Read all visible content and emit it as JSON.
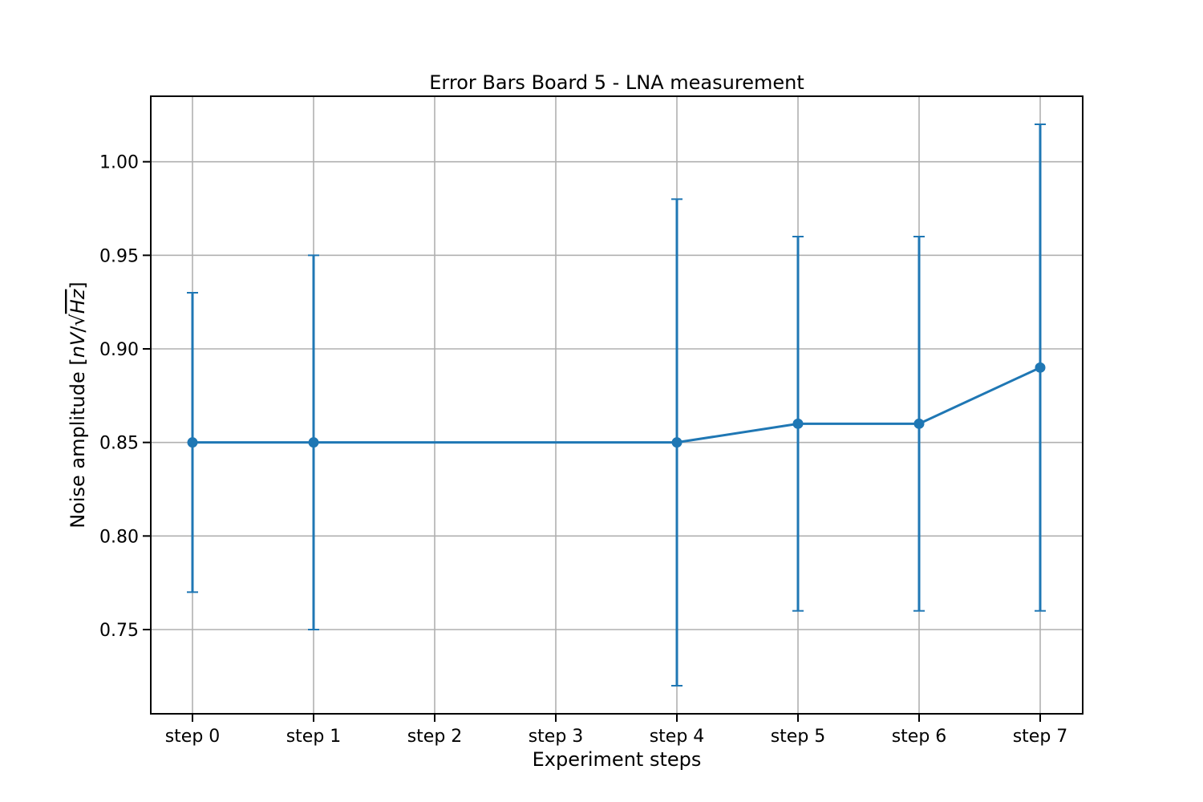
{
  "chart_data": {
    "type": "line",
    "title": "Error Bars Board 5 - LNA measurement",
    "xlabel": "Experiment steps",
    "ylabel_prefix": "Noise amplitude [",
    "ylabel_unit_italic_1": "nV",
    "ylabel_slash": "/",
    "ylabel_radical": "√",
    "ylabel_unit_italic_2": "Hz",
    "ylabel_suffix": "]",
    "categories": [
      "step 0",
      "step 1",
      "step 2",
      "step 3",
      "step 4",
      "step 5",
      "step 6",
      "step 7"
    ],
    "series": [
      {
        "points": [
          {
            "x": "step 0",
            "y": 0.85,
            "ylow": 0.77,
            "yhigh": 0.93
          },
          {
            "x": "step 1",
            "y": 0.85,
            "ylow": 0.75,
            "yhigh": 0.95
          },
          {
            "x": "step 4",
            "y": 0.85,
            "ylow": 0.72,
            "yhigh": 0.98
          },
          {
            "x": "step 5",
            "y": 0.86,
            "ylow": 0.76,
            "yhigh": 0.96
          },
          {
            "x": "step 6",
            "y": 0.86,
            "ylow": 0.76,
            "yhigh": 0.96
          },
          {
            "x": "step 7",
            "y": 0.89,
            "ylow": 0.76,
            "yhigh": 1.02
          }
        ],
        "color": "#1f77b4"
      }
    ],
    "yticks": [
      "0.75",
      "0.80",
      "0.85",
      "0.90",
      "0.95",
      "1.00"
    ],
    "ylim": [
      0.705,
      1.035
    ],
    "grid": true,
    "legend": false
  }
}
